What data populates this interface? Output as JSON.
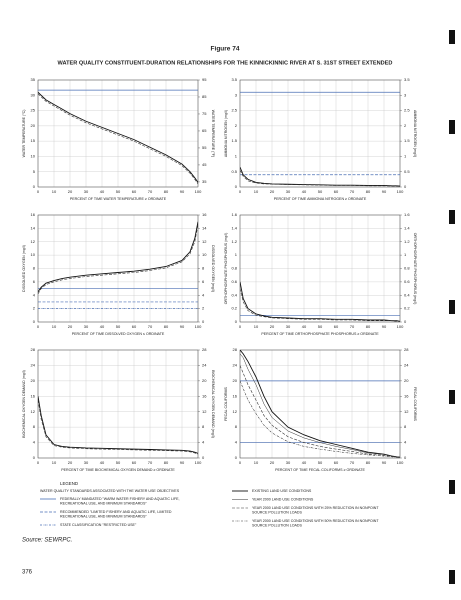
{
  "figure_label": "Figure 74",
  "title": "WATER QUALITY CONSTITUENT-DURATION RELATIONSHIPS FOR THE KINNICKINNIC RIVER AT S. 31ST STREET EXTENDED",
  "chart_data": [
    {
      "type": "line",
      "xlabel": "PERCENT OF TIME WATER TEMPERATURE ≥ ORDINATE",
      "ylabel": "WATER TEMPERATURE (°C)",
      "y2label": "WATER TEMPERATURE (°F)",
      "x": [
        0,
        2,
        5,
        10,
        15,
        20,
        30,
        40,
        50,
        60,
        70,
        80,
        90,
        95,
        98,
        100
      ],
      "xlim": [
        0,
        100
      ],
      "xticks": [
        0,
        10,
        20,
        30,
        40,
        50,
        60,
        70,
        80,
        90,
        100
      ],
      "ylim": [
        0,
        35
      ],
      "yticks": [
        0,
        5,
        10,
        15,
        20,
        25,
        30,
        35
      ],
      "y2lim": [
        32,
        95
      ],
      "y2ticks": [
        35,
        45,
        55,
        65,
        75,
        85,
        95
      ],
      "series": [
        {
          "color": "#111",
          "dash": "",
          "width": 0.9,
          "values": [
            31,
            30,
            28.5,
            27,
            25.5,
            24,
            21.5,
            19.5,
            17.5,
            15.5,
            13,
            10.5,
            7.5,
            5,
            3,
            1.5
          ]
        },
        {
          "color": "#333",
          "dash": "3,1.5",
          "width": 0.6,
          "values": [
            30.5,
            29.5,
            28,
            26.5,
            25,
            23.5,
            21,
            19,
            17,
            15,
            12.5,
            10,
            7,
            4.5,
            2.5,
            1
          ]
        }
      ],
      "standards": [
        {
          "value": 31.7,
          "color": "#4a6fb5",
          "dash": ""
        }
      ]
    },
    {
      "type": "line",
      "xlabel": "PERCENT OF TIME AMMONIA NITROGEN ≥ ORDINATE",
      "ylabel": "AMMONIA NITROGEN (mg/l)",
      "y2label": "AMMONIA NITROGEN (mg/l)",
      "x": [
        0,
        2,
        5,
        10,
        15,
        20,
        30,
        40,
        50,
        60,
        70,
        80,
        90,
        95,
        98,
        100
      ],
      "xlim": [
        0,
        100
      ],
      "xticks": [
        0,
        10,
        20,
        30,
        40,
        50,
        60,
        70,
        80,
        90,
        100
      ],
      "ylim": [
        0,
        3.5
      ],
      "yticks": [
        0,
        0.5,
        1,
        1.5,
        2,
        2.5,
        3,
        3.5
      ],
      "y2lim": [
        0,
        3.5
      ],
      "y2ticks": [
        0,
        0.5,
        1,
        1.5,
        2,
        2.5,
        3,
        3.5
      ],
      "series": [
        {
          "color": "#111",
          "dash": "",
          "width": 0.9,
          "values": [
            0.65,
            0.4,
            0.25,
            0.15,
            0.12,
            0.1,
            0.09,
            0.08,
            0.07,
            0.06,
            0.06,
            0.05,
            0.05,
            0.04,
            0.04,
            0.03
          ]
        },
        {
          "color": "#333",
          "dash": "3,1.5",
          "width": 0.6,
          "values": [
            0.55,
            0.35,
            0.2,
            0.13,
            0.1,
            0.09,
            0.08,
            0.07,
            0.06,
            0.05,
            0.05,
            0.04,
            0.04,
            0.03,
            0.03,
            0.02
          ]
        }
      ],
      "standards": [
        {
          "value": 3.1,
          "color": "#4a6fb5",
          "dash": ""
        },
        {
          "value": 0.4,
          "color": "#4a6fb5",
          "dash": "3,1.5"
        }
      ]
    },
    {
      "type": "line",
      "xlabel": "PERCENT OF TIME DISSOLVED OXYGEN ≤ ORDINATE",
      "ylabel": "DISSOLVED OXYGEN (mg/l)",
      "y2label": "DISSOLVED OXYGEN (mg/l)",
      "x": [
        0,
        2,
        5,
        10,
        15,
        20,
        30,
        40,
        50,
        60,
        70,
        80,
        90,
        95,
        98,
        100
      ],
      "xlim": [
        0,
        100
      ],
      "xticks": [
        0,
        10,
        20,
        30,
        40,
        50,
        60,
        70,
        80,
        90,
        100
      ],
      "ylim": [
        0,
        16
      ],
      "yticks": [
        0,
        2,
        4,
        6,
        8,
        10,
        12,
        14,
        16
      ],
      "y2lim": [
        0,
        16
      ],
      "y2ticks": [
        0,
        2,
        4,
        6,
        8,
        10,
        12,
        14,
        16
      ],
      "series": [
        {
          "color": "#111",
          "dash": "",
          "width": 0.9,
          "values": [
            4.5,
            5.2,
            5.8,
            6.2,
            6.5,
            6.7,
            7,
            7.2,
            7.4,
            7.6,
            7.9,
            8.3,
            9.2,
            10.5,
            12.5,
            15
          ]
        },
        {
          "color": "#333",
          "dash": "3,1.5",
          "width": 0.6,
          "values": [
            4.2,
            5,
            5.6,
            6,
            6.3,
            6.5,
            6.8,
            7,
            7.2,
            7.4,
            7.7,
            8.1,
            9,
            10.2,
            12,
            14.5
          ]
        }
      ],
      "standards": [
        {
          "value": 5,
          "color": "#4a6fb5",
          "dash": ""
        },
        {
          "value": 3,
          "color": "#4a6fb5",
          "dash": "3,1.5"
        },
        {
          "value": 2,
          "color": "#4a6fb5",
          "dash": "2,1,0.5,1"
        }
      ]
    },
    {
      "type": "line",
      "xlabel": "PERCENT OF TIME ORTHOPHOSPHATE PHOSPHORUS ≥ ORDINATE",
      "ylabel": "ORTHOPHOSPHATE PHOSPHORUS (mg/l)",
      "y2label": "ORTHOPHOSPHATE PHOSPHORUS (mg/l)",
      "x": [
        0,
        2,
        5,
        10,
        15,
        20,
        30,
        40,
        50,
        60,
        70,
        80,
        90,
        95,
        98,
        100
      ],
      "xlim": [
        0,
        100
      ],
      "xticks": [
        0,
        10,
        20,
        30,
        40,
        50,
        60,
        70,
        80,
        90,
        100
      ],
      "ylim": [
        0,
        1.6
      ],
      "yticks": [
        0,
        0.2,
        0.4,
        0.6,
        0.8,
        1,
        1.2,
        1.4,
        1.6
      ],
      "y2lim": [
        0,
        1.6
      ],
      "y2ticks": [
        0,
        0.2,
        0.4,
        0.6,
        0.8,
        1,
        1.2,
        1.4,
        1.6
      ],
      "series": [
        {
          "color": "#111",
          "dash": "",
          "width": 0.9,
          "values": [
            0.6,
            0.35,
            0.2,
            0.12,
            0.09,
            0.07,
            0.06,
            0.05,
            0.05,
            0.04,
            0.04,
            0.03,
            0.03,
            0.02,
            0.02,
            0.01
          ]
        },
        {
          "color": "#333",
          "dash": "3,1.5",
          "width": 0.6,
          "values": [
            0.5,
            0.3,
            0.17,
            0.1,
            0.08,
            0.06,
            0.05,
            0.04,
            0.04,
            0.03,
            0.03,
            0.02,
            0.02,
            0.02,
            0.01,
            0.01
          ]
        }
      ],
      "standards": [
        {
          "value": 0.1,
          "color": "#4a6fb5",
          "dash": ""
        }
      ]
    },
    {
      "type": "line",
      "xlabel": "PERCENT OF TIME BIOCHEMICAL OXYGEN DEMAND ≥ ORDINATE",
      "ylabel": "BIOCHEMICAL OXYGEN DEMAND (mg/l)",
      "y2label": "BIOCHEMICAL OXYGEN DEMAND (mg/l)",
      "x": [
        0,
        2,
        5,
        10,
        15,
        20,
        30,
        40,
        50,
        60,
        70,
        80,
        90,
        95,
        98,
        100
      ],
      "xlim": [
        0,
        100
      ],
      "xticks": [
        0,
        10,
        20,
        30,
        40,
        50,
        60,
        70,
        80,
        90,
        100
      ],
      "ylim": [
        0,
        28
      ],
      "yticks": [
        0,
        4,
        8,
        12,
        16,
        20,
        24,
        28
      ],
      "y2lim": [
        0,
        28
      ],
      "y2ticks": [
        0,
        4,
        8,
        12,
        16,
        20,
        24,
        28
      ],
      "series": [
        {
          "color": "#111",
          "dash": "",
          "width": 0.9,
          "values": [
            16,
            11,
            6,
            3.5,
            3,
            2.8,
            2.6,
            2.5,
            2.4,
            2.3,
            2.2,
            2.1,
            2,
            1.8,
            1.5,
            1.2
          ]
        },
        {
          "color": "#333",
          "dash": "3,1.5",
          "width": 0.6,
          "values": [
            15,
            10,
            5.5,
            3.2,
            2.8,
            2.6,
            2.4,
            2.3,
            2.2,
            2.1,
            2,
            1.9,
            1.8,
            1.6,
            1.3,
            1
          ]
        }
      ],
      "standards": []
    },
    {
      "type": "line",
      "xlabel": "PERCENT OF TIME FECAL COLIFORMS ≥ ORDINATE",
      "ylabel": "FECAL COLIFORMS",
      "y2label": "FECAL COLIFORMS",
      "x": [
        0,
        2,
        5,
        10,
        15,
        20,
        30,
        40,
        50,
        60,
        70,
        80,
        90,
        95,
        98,
        100
      ],
      "xlim": [
        0,
        100
      ],
      "xticks": [
        0,
        10,
        20,
        30,
        40,
        50,
        60,
        70,
        80,
        90,
        100
      ],
      "ylim": [
        0,
        28
      ],
      "yticks": [
        0,
        4,
        8,
        12,
        16,
        20,
        24,
        28
      ],
      "y2lim": [
        0,
        28
      ],
      "y2ticks": [
        0,
        4,
        8,
        12,
        16,
        20,
        24,
        28
      ],
      "series": [
        {
          "color": "#111",
          "dash": "",
          "width": 0.9,
          "values": [
            28,
            27,
            25,
            21,
            16,
            12,
            8,
            6,
            4.5,
            3.5,
            2.5,
            1.5,
            1,
            0.5,
            0.3,
            0.2
          ]
        },
        {
          "color": "#333",
          "dash": "",
          "width": 0.5,
          "values": [
            27,
            26,
            23,
            19,
            14,
            10.5,
            7,
            5.2,
            4,
            3,
            2.2,
            1.3,
            0.9,
            0.5,
            0.3,
            0.2
          ]
        },
        {
          "color": "#333",
          "dash": "3,1.5",
          "width": 0.6,
          "values": [
            24,
            22,
            19,
            15,
            11,
            8.5,
            5.5,
            4,
            3,
            2.3,
            1.7,
            1,
            0.7,
            0.4,
            0.2,
            0.1
          ]
        },
        {
          "color": "#333",
          "dash": "2,1,0.5,1",
          "width": 0.6,
          "values": [
            20,
            18,
            15,
            11.5,
            8.5,
            6.5,
            4.2,
            3,
            2.3,
            1.7,
            1.2,
            0.8,
            0.5,
            0.3,
            0.2,
            0.1
          ]
        }
      ],
      "standards": [
        {
          "value": 20,
          "color": "#4a6fb5",
          "dash": ""
        },
        {
          "value": 4,
          "color": "#4a6fb5",
          "dash": ""
        }
      ]
    }
  ],
  "legend": {
    "title": "LEGEND",
    "heading": "WATER QUALITY STANDARDS ASSOCIATED WITH THE WATER USE OBJECTIVES",
    "standards": [
      {
        "color": "#4a6fb5",
        "dash": "",
        "lines": [
          "FEDERALLY MANDATED \"WARM WATER FISHERY AND AQUATIC LIFE,",
          "RECREATIONAL USE, AND MINIMUM STANDARDS\""
        ]
      },
      {
        "color": "#4a6fb5",
        "dash": "3,1.5",
        "lines": [
          "RECOMMENDED \"LIMITED FISHERY AND AQUATIC LIFE, LIMITED",
          "RECREATIONAL USE, AND MINIMUM STANDARDS\""
        ]
      },
      {
        "color": "#4a6fb5",
        "dash": "2,1,0.5,1",
        "lines": [
          "STATE CLASSIFICATION \"RESTRICTED USE\""
        ]
      }
    ],
    "conditions": [
      {
        "color": "#111",
        "dash": "",
        "width": 0.9,
        "lines": [
          "EXISTING LAND USE CONDITIONS"
        ]
      },
      {
        "color": "#333",
        "dash": "",
        "width": 0.5,
        "lines": [
          "YEAR 2000 LAND USE CONDITIONS"
        ]
      },
      {
        "color": "#333",
        "dash": "3,1.5",
        "width": 0.6,
        "lines": [
          "YEAR 2000 LAND USE CONDITIONS WITH 25% REDUCTION IN NONPOINT",
          "SOURCE POLLUTION LOADS"
        ]
      },
      {
        "color": "#333",
        "dash": "2,1,0.5,1",
        "width": 0.6,
        "lines": [
          "YEAR 2000 LAND USE CONDITIONS WITH 50% REDUCTION IN NONPOINT",
          "SOURCE POLLUTION LOADS"
        ]
      }
    ]
  },
  "source": "Source: SEWRPC.",
  "page_number": "376"
}
